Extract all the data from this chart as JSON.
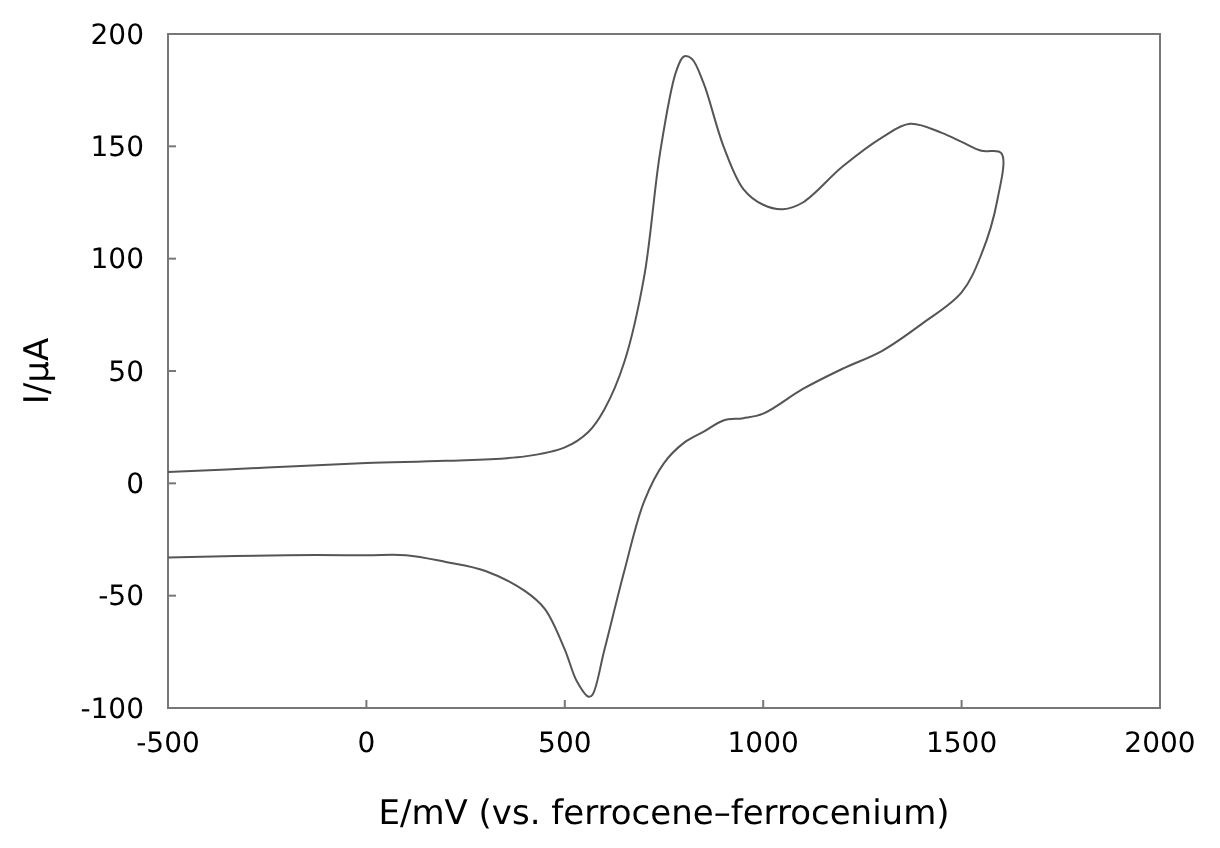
{
  "chart_data": {
    "type": "line",
    "xlabel": "E/mV (vs. ferrocene–ferrocenium)",
    "ylabel": "I/μA",
    "xlim": [
      -500,
      2000
    ],
    "ylim": [
      -100,
      200
    ],
    "xticks": [
      -500,
      0,
      500,
      1000,
      1500,
      2000
    ],
    "yticks": [
      -100,
      -50,
      0,
      50,
      100,
      150,
      200
    ],
    "grid": false,
    "marker": "none",
    "line_style": "solid",
    "series": [
      {
        "color": "#555555",
        "x": [
          -500,
          -250,
          0,
          200,
          400,
          500,
          560,
          600,
          650,
          700,
          740,
          780,
          800,
          820,
          850,
          900,
          950,
          1000,
          1050,
          1100,
          1200,
          1300,
          1370,
          1450,
          1500,
          1550,
          1600,
          1590,
          1550,
          1500,
          1400,
          1300,
          1200,
          1100,
          1000,
          950,
          900,
          850,
          800,
          750,
          700,
          650,
          600,
          570,
          560,
          530,
          500,
          450,
          400,
          300,
          200,
          100,
          0,
          -200,
          -500
        ],
        "values": [
          5,
          7,
          9,
          10,
          12,
          16,
          23,
          33,
          54,
          92,
          147,
          183,
          190,
          189,
          178,
          150,
          131,
          124,
          122,
          125,
          141,
          154,
          160,
          156,
          152,
          148,
          147,
          126,
          102,
          85,
          71,
          59,
          51,
          42,
          31,
          29,
          28,
          23,
          18,
          9,
          -8,
          -39,
          -74,
          -94,
          -95,
          -88,
          -74,
          -56,
          -48,
          -39,
          -35,
          -32,
          -32,
          -32,
          -33
        ]
      }
    ]
  }
}
